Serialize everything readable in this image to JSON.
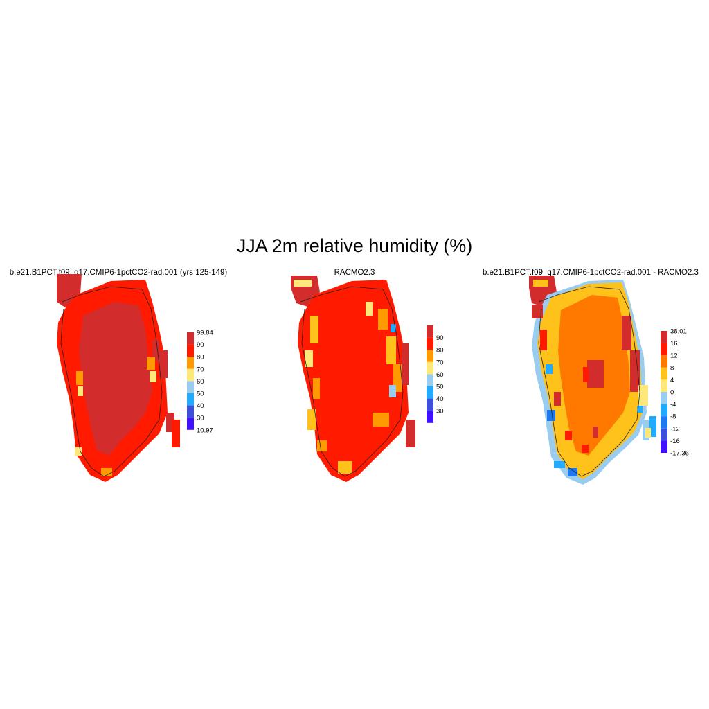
{
  "title": "JJA 2m relative humidity (%)",
  "palette": {
    "dark_red": "#d22c2c",
    "red": "#ff1a00",
    "orange": "#ff9a00",
    "gold": "#ffc21a",
    "yellow": "#ffe87a",
    "light_blue": "#99ccee",
    "sky_blue": "#22aaff",
    "blue": "#1e78f0",
    "royal_blue": "#3c50dc",
    "violet": "#4010ff",
    "diff_orange": "#ff7800"
  },
  "panels": [
    {
      "title": "b.e21.B1PCT.f09_g17.CMIP6-1pctCO2-rad.001 (yrs 125-149)",
      "variable": "relative humidity",
      "colorbar": {
        "labels": [
          "99.84",
          "90",
          "80",
          "70",
          "60",
          "50",
          "40",
          "30",
          "10.97"
        ],
        "colors": [
          "#d22c2c",
          "#ff1a00",
          "#ff9a00",
          "#ffe87a",
          "#99ccee",
          "#22aaff",
          "#3c50dc",
          "#4010ff"
        ]
      }
    },
    {
      "title": "RACMO2.3",
      "variable": "relative humidity",
      "colorbar": {
        "labels": [
          "",
          "90",
          "80",
          "70",
          "60",
          "50",
          "40",
          "30",
          ""
        ],
        "colors": [
          "#d22c2c",
          "#ff1a00",
          "#ff9a00",
          "#ffe87a",
          "#99ccee",
          "#22aaff",
          "#3c50dc",
          "#4010ff"
        ]
      }
    },
    {
      "title": "b.e21.B1PCT.f09_g17.CMIP6-1pctCO2-rad.001 - RACMO2.3",
      "variable": "difference",
      "colorbar": {
        "labels": [
          "38.01",
          "16",
          "12",
          "8",
          "4",
          "0",
          "-4",
          "-8",
          "-12",
          "-16",
          "-17.36"
        ],
        "colors": [
          "#d22c2c",
          "#ff1a00",
          "#ff7800",
          "#ffc21a",
          "#ffe87a",
          "#99ccee",
          "#22aaff",
          "#1e78f0",
          "#3c50dc",
          "#4010ff"
        ]
      }
    }
  ]
}
